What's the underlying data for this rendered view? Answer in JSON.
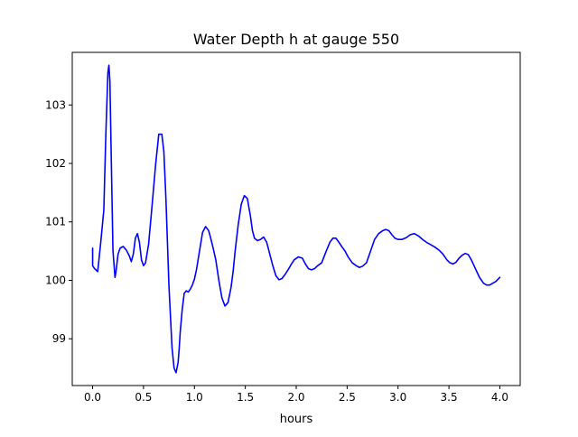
{
  "chart_data": {
    "type": "line",
    "title": "Water Depth h at gauge 550",
    "xlabel": "hours",
    "ylabel": "",
    "xlim": [
      -0.2,
      4.2
    ],
    "ylim": [
      98.2,
      103.9
    ],
    "grid": false,
    "x_ticks": [
      0.0,
      0.5,
      1.0,
      1.5,
      2.0,
      2.5,
      3.0,
      3.5,
      4.0
    ],
    "x_tick_labels": [
      "0.0",
      "0.5",
      "1.0",
      "1.5",
      "2.0",
      "2.5",
      "3.0",
      "3.5",
      "4.0"
    ],
    "y_ticks": [
      99,
      100,
      101,
      102,
      103
    ],
    "y_tick_labels": [
      "99",
      "100",
      "101",
      "102",
      "103"
    ],
    "series": [
      {
        "color": "#0000ff",
        "x": [
          0.0,
          0.0,
          0.02,
          0.05,
          0.08,
          0.11,
          0.13,
          0.15,
          0.16,
          0.17,
          0.18,
          0.2,
          0.22,
          0.23,
          0.25,
          0.27,
          0.3,
          0.33,
          0.36,
          0.38,
          0.4,
          0.42,
          0.44,
          0.46,
          0.48,
          0.5,
          0.52,
          0.55,
          0.58,
          0.62,
          0.65,
          0.68,
          0.7,
          0.72,
          0.75,
          0.78,
          0.8,
          0.82,
          0.84,
          0.85,
          0.86,
          0.88,
          0.9,
          0.92,
          0.94,
          0.96,
          0.98,
          1.0,
          1.02,
          1.05,
          1.08,
          1.11,
          1.14,
          1.16,
          1.18,
          1.21,
          1.24,
          1.27,
          1.3,
          1.33,
          1.36,
          1.38,
          1.4,
          1.43,
          1.46,
          1.49,
          1.52,
          1.55,
          1.57,
          1.59,
          1.62,
          1.65,
          1.68,
          1.71,
          1.74,
          1.77,
          1.8,
          1.83,
          1.86,
          1.89,
          1.92,
          1.95,
          1.98,
          2.02,
          2.06,
          2.09,
          2.12,
          2.15,
          2.18,
          2.21,
          2.25,
          2.29,
          2.33,
          2.36,
          2.39,
          2.42,
          2.45,
          2.48,
          2.51,
          2.55,
          2.59,
          2.62,
          2.65,
          2.69,
          2.73,
          2.77,
          2.81,
          2.85,
          2.88,
          2.91,
          2.94,
          2.97,
          3.0,
          3.04,
          3.08,
          3.12,
          3.16,
          3.2,
          3.24,
          3.28,
          3.32,
          3.36,
          3.4,
          3.44,
          3.48,
          3.51,
          3.54,
          3.57,
          3.6,
          3.63,
          3.66,
          3.69,
          3.72,
          3.76,
          3.8,
          3.84,
          3.87,
          3.9,
          3.93,
          3.96,
          4.0
        ],
        "y": [
          100.55,
          100.25,
          100.2,
          100.15,
          100.65,
          101.2,
          102.5,
          103.55,
          103.68,
          103.4,
          102.4,
          100.5,
          100.05,
          100.15,
          100.45,
          100.55,
          100.58,
          100.52,
          100.42,
          100.32,
          100.45,
          100.72,
          100.8,
          100.65,
          100.35,
          100.25,
          100.3,
          100.62,
          101.2,
          102.0,
          102.5,
          102.5,
          102.2,
          101.4,
          99.9,
          98.85,
          98.5,
          98.42,
          98.6,
          98.82,
          99.1,
          99.5,
          99.78,
          99.82,
          99.8,
          99.85,
          99.92,
          100.02,
          100.18,
          100.5,
          100.82,
          100.92,
          100.85,
          100.72,
          100.58,
          100.35,
          100.0,
          99.7,
          99.56,
          99.62,
          99.88,
          100.15,
          100.5,
          100.95,
          101.3,
          101.45,
          101.4,
          101.1,
          100.85,
          100.72,
          100.68,
          100.7,
          100.74,
          100.65,
          100.45,
          100.25,
          100.08,
          100.01,
          100.03,
          100.1,
          100.18,
          100.27,
          100.35,
          100.4,
          100.38,
          100.28,
          100.2,
          100.18,
          100.2,
          100.25,
          100.3,
          100.48,
          100.65,
          100.72,
          100.72,
          100.65,
          100.57,
          100.5,
          100.4,
          100.3,
          100.25,
          100.22,
          100.24,
          100.3,
          100.5,
          100.7,
          100.8,
          100.85,
          100.87,
          100.85,
          100.78,
          100.72,
          100.7,
          100.7,
          100.73,
          100.78,
          100.8,
          100.76,
          100.7,
          100.65,
          100.61,
          100.57,
          100.52,
          100.45,
          100.35,
          100.3,
          100.28,
          100.31,
          100.38,
          100.43,
          100.46,
          100.44,
          100.35,
          100.2,
          100.05,
          99.95,
          99.92,
          99.92,
          99.95,
          99.98,
          100.05
        ]
      }
    ]
  }
}
